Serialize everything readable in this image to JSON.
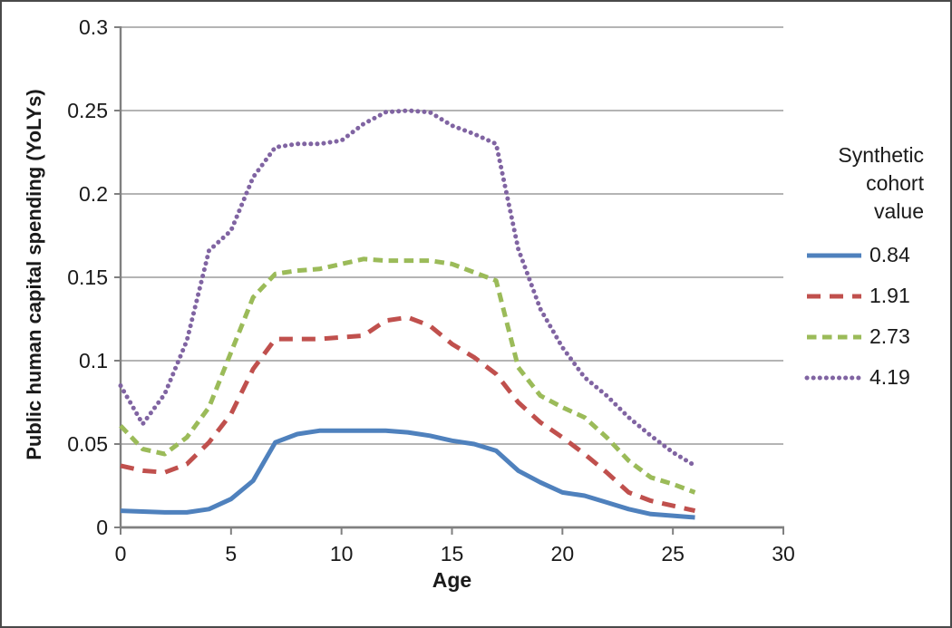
{
  "figure": {
    "background": "#ffffff",
    "border_color": "#4a4a4a"
  },
  "chart_data": {
    "type": "line",
    "title": "",
    "xlabel": "Age",
    "ylabel": "Public human capital spending (YoLYs)",
    "xlim": [
      0,
      30
    ],
    "ylim": [
      0,
      0.3
    ],
    "x_ticks": [
      0,
      5,
      10,
      15,
      20,
      25,
      30
    ],
    "x_tick_labels": [
      "0",
      "5",
      "10",
      "15",
      "20",
      "25",
      "30"
    ],
    "y_ticks": [
      0,
      0.05,
      0.1,
      0.15,
      0.2,
      0.25,
      0.3
    ],
    "y_tick_labels": [
      "0",
      "0.05",
      "0.1",
      "0.15",
      "0.2",
      "0.25",
      "0.3"
    ],
    "grid": "horizontal",
    "grid_color": "#9c9c9c",
    "axis_color": "#808080",
    "text_color": "#1a1a1a",
    "legend_title": "Synthetic\ncohort\nvalue",
    "legend_position": "right",
    "x": [
      0,
      1,
      2,
      3,
      4,
      5,
      6,
      7,
      8,
      9,
      10,
      11,
      12,
      13,
      14,
      15,
      16,
      17,
      18,
      19,
      20,
      21,
      22,
      23,
      24,
      25,
      26
    ],
    "series": [
      {
        "name": "0.84",
        "color": "#4F81BD",
        "style": "solid",
        "values": [
          0.01,
          0.0095,
          0.009,
          0.009,
          0.011,
          0.017,
          0.028,
          0.051,
          0.056,
          0.058,
          0.058,
          0.058,
          0.058,
          0.057,
          0.055,
          0.052,
          0.05,
          0.046,
          0.034,
          0.027,
          0.021,
          0.019,
          0.015,
          0.011,
          0.008,
          0.007,
          0.006
        ]
      },
      {
        "name": "1.91",
        "color": "#C0504D",
        "style": "long-dash",
        "values": [
          0.037,
          0.034,
          0.033,
          0.038,
          0.051,
          0.068,
          0.095,
          0.113,
          0.113,
          0.113,
          0.114,
          0.115,
          0.124,
          0.126,
          0.121,
          0.11,
          0.102,
          0.092,
          0.075,
          0.063,
          0.054,
          0.044,
          0.033,
          0.021,
          0.016,
          0.013,
          0.01
        ]
      },
      {
        "name": "2.73",
        "color": "#9BBB59",
        "style": "dash",
        "values": [
          0.061,
          0.047,
          0.044,
          0.054,
          0.072,
          0.105,
          0.138,
          0.152,
          0.154,
          0.155,
          0.158,
          0.161,
          0.16,
          0.16,
          0.16,
          0.158,
          0.153,
          0.148,
          0.096,
          0.079,
          0.072,
          0.066,
          0.054,
          0.04,
          0.03,
          0.026,
          0.021
        ]
      },
      {
        "name": "4.19",
        "color": "#8064A2",
        "style": "dot",
        "values": [
          0.085,
          0.062,
          0.08,
          0.112,
          0.166,
          0.178,
          0.21,
          0.228,
          0.23,
          0.23,
          0.232,
          0.242,
          0.249,
          0.25,
          0.249,
          0.241,
          0.236,
          0.23,
          0.167,
          0.131,
          0.108,
          0.09,
          0.079,
          0.066,
          0.055,
          0.045,
          0.037
        ]
      }
    ]
  }
}
